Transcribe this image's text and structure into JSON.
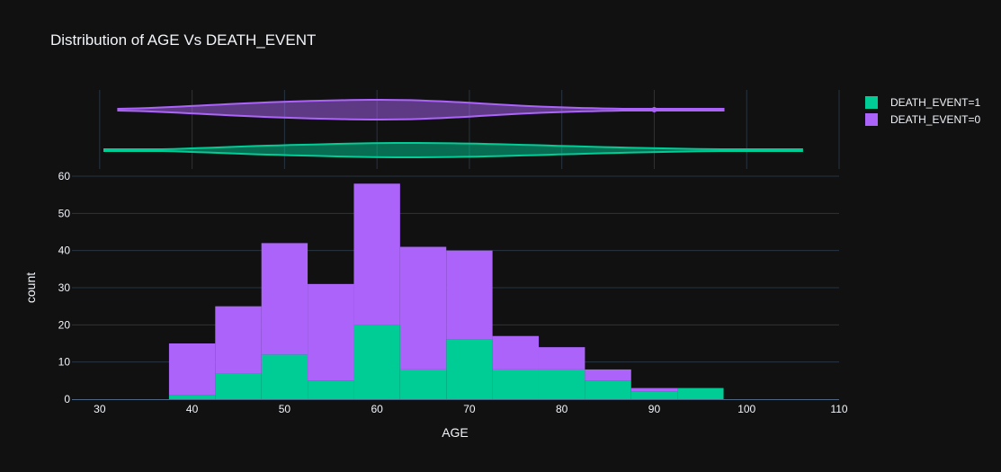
{
  "chart_data": {
    "type": "bar",
    "title": "Distribution of AGE Vs DEATH_EVENT",
    "xlabel": "AGE",
    "ylabel": "count",
    "barmode": "stack",
    "xlim": [
      27,
      110
    ],
    "ylim": [
      0,
      60
    ],
    "xticks": [
      30,
      40,
      50,
      60,
      70,
      80,
      90,
      100,
      110
    ],
    "yticks": [
      0,
      10,
      20,
      30,
      40,
      50,
      60
    ],
    "bin_edges": [
      37.5,
      42.5,
      47.5,
      52.5,
      57.5,
      62.5,
      67.5,
      72.5,
      77.5,
      82.5,
      87.5,
      92.5,
      97.5
    ],
    "grid": true,
    "legend_position": "top-right",
    "series": [
      {
        "name": "DEATH_EVENT=1",
        "color": "#00cc96",
        "values": [
          1,
          7,
          12,
          5,
          20,
          8,
          16,
          8,
          8,
          5,
          2,
          3
        ]
      },
      {
        "name": "DEATH_EVENT=0",
        "color": "#ab63fa",
        "values": [
          14,
          18,
          30,
          26,
          38,
          33,
          24,
          9,
          6,
          3,
          1,
          0
        ]
      }
    ],
    "violins": [
      {
        "series": "DEATH_EVENT=0",
        "color": "#ab63fa",
        "range": [
          32,
          97.5
        ],
        "outliers": [
          90
        ]
      },
      {
        "series": "DEATH_EVENT=1",
        "color": "#00cc96",
        "range": [
          30.5,
          106
        ]
      }
    ]
  }
}
